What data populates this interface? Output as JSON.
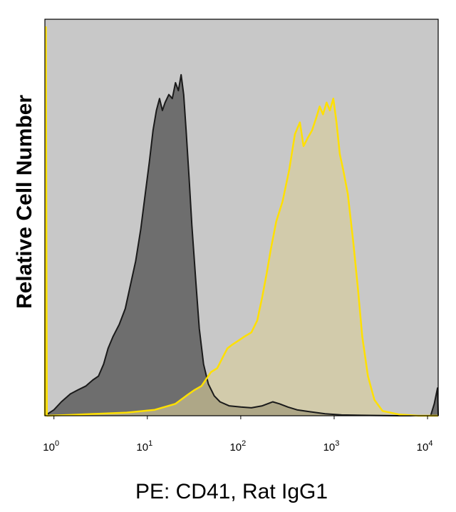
{
  "chart_data": {
    "type": "area",
    "title": "",
    "xlabel": "PE: CD41, Rat IgG1",
    "ylabel": "Relative Cell Number",
    "x_scale": "log",
    "xlim": [
      0.8,
      13000
    ],
    "ylim": [
      0,
      1.0
    ],
    "grid": false,
    "background_color": "#c8c8c8",
    "x_ticks": [
      {
        "value": 1,
        "base": "10",
        "exp": "0"
      },
      {
        "value": 10,
        "base": "10",
        "exp": "1"
      },
      {
        "value": 100,
        "base": "10",
        "exp": "2"
      },
      {
        "value": 1000,
        "base": "10",
        "exp": "3"
      },
      {
        "value": 10000,
        "base": "10",
        "exp": "4"
      }
    ],
    "series": [
      {
        "color": "#1a1a1a",
        "fill": "#6e6e6e",
        "points": [
          [
            0.8,
            0.0
          ],
          [
            1.0,
            0.015
          ],
          [
            1.2,
            0.035
          ],
          [
            1.5,
            0.055
          ],
          [
            1.8,
            0.065
          ],
          [
            2.2,
            0.075
          ],
          [
            2.6,
            0.09
          ],
          [
            3.0,
            0.1
          ],
          [
            3.4,
            0.13
          ],
          [
            3.8,
            0.17
          ],
          [
            4.3,
            0.2
          ],
          [
            5.0,
            0.23
          ],
          [
            5.8,
            0.27
          ],
          [
            6.6,
            0.33
          ],
          [
            7.5,
            0.39
          ],
          [
            8.5,
            0.47
          ],
          [
            9.5,
            0.56
          ],
          [
            10.5,
            0.64
          ],
          [
            11.5,
            0.72
          ],
          [
            12.5,
            0.77
          ],
          [
            13.5,
            0.8
          ],
          [
            14.5,
            0.77
          ],
          [
            15.5,
            0.79
          ],
          [
            17.0,
            0.81
          ],
          [
            18.5,
            0.8
          ],
          [
            20.0,
            0.84
          ],
          [
            21.5,
            0.82
          ],
          [
            23.0,
            0.86
          ],
          [
            24.5,
            0.81
          ],
          [
            26.0,
            0.72
          ],
          [
            28.0,
            0.6
          ],
          [
            30.0,
            0.48
          ],
          [
            33.0,
            0.34
          ],
          [
            36.0,
            0.22
          ],
          [
            40.0,
            0.13
          ],
          [
            45.0,
            0.08
          ],
          [
            52.0,
            0.05
          ],
          [
            60.0,
            0.035
          ],
          [
            75.0,
            0.025
          ],
          [
            100.0,
            0.022
          ],
          [
            130.0,
            0.02
          ],
          [
            170.0,
            0.025
          ],
          [
            220.0,
            0.035
          ],
          [
            260.0,
            0.03
          ],
          [
            320.0,
            0.022
          ],
          [
            400.0,
            0.015
          ],
          [
            550.0,
            0.01
          ],
          [
            800.0,
            0.005
          ],
          [
            1200.0,
            0.002
          ],
          [
            2000.0,
            0.001
          ],
          [
            5000.0,
            0.0
          ],
          [
            10800.0,
            0.0
          ],
          [
            11800.0,
            0.03
          ],
          [
            12800.0,
            0.07
          ],
          [
            13000.0,
            0.0
          ]
        ]
      },
      {
        "color": "#ffe000",
        "fill": "#d9cd98",
        "points": [
          [
            0.8,
            0.0
          ],
          [
            0.82,
            0.98
          ],
          [
            0.84,
            0.0
          ],
          [
            1.5,
            0.002
          ],
          [
            3.0,
            0.005
          ],
          [
            6.0,
            0.008
          ],
          [
            12.0,
            0.015
          ],
          [
            20.0,
            0.03
          ],
          [
            26.0,
            0.05
          ],
          [
            32.0,
            0.065
          ],
          [
            38.0,
            0.075
          ],
          [
            42.0,
            0.09
          ],
          [
            48.0,
            0.11
          ],
          [
            56.0,
            0.12
          ],
          [
            65.0,
            0.15
          ],
          [
            72.0,
            0.17
          ],
          [
            82.0,
            0.18
          ],
          [
            95.0,
            0.19
          ],
          [
            110.0,
            0.2
          ],
          [
            130.0,
            0.21
          ],
          [
            150.0,
            0.24
          ],
          [
            170.0,
            0.3
          ],
          [
            190.0,
            0.36
          ],
          [
            210.0,
            0.42
          ],
          [
            240.0,
            0.49
          ],
          [
            280.0,
            0.54
          ],
          [
            330.0,
            0.62
          ],
          [
            380.0,
            0.71
          ],
          [
            430.0,
            0.74
          ],
          [
            470.0,
            0.68
          ],
          [
            520.0,
            0.7
          ],
          [
            580.0,
            0.72
          ],
          [
            640.0,
            0.75
          ],
          [
            700.0,
            0.78
          ],
          [
            760.0,
            0.76
          ],
          [
            830.0,
            0.79
          ],
          [
            900.0,
            0.77
          ],
          [
            980.0,
            0.8
          ],
          [
            1060.0,
            0.74
          ],
          [
            1150.0,
            0.66
          ],
          [
            1250.0,
            0.62
          ],
          [
            1400.0,
            0.56
          ],
          [
            1600.0,
            0.44
          ],
          [
            1800.0,
            0.32
          ],
          [
            2000.0,
            0.2
          ],
          [
            2300.0,
            0.1
          ],
          [
            2700.0,
            0.04
          ],
          [
            3300.0,
            0.012
          ],
          [
            5000.0,
            0.003
          ],
          [
            8000.0,
            0.0
          ],
          [
            13000.0,
            0.0
          ]
        ]
      }
    ]
  }
}
